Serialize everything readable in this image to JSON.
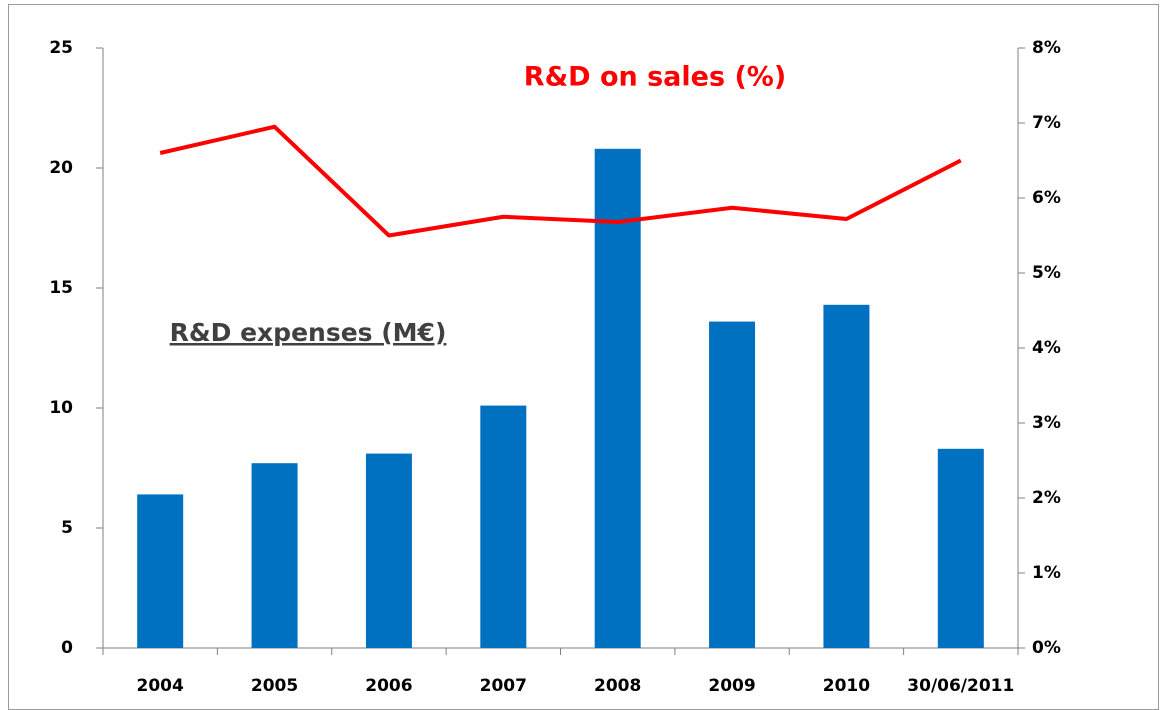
{
  "chart_data": {
    "type": "bar_line",
    "bar_title": "R&D expenses (M€)",
    "line_title": "R&D on sales (%)",
    "categories": [
      "2004",
      "2005",
      "2006",
      "2007",
      "2008",
      "2009",
      "2010",
      "30/06/2011"
    ],
    "series": [
      {
        "name": "R&D expenses (M€)",
        "color": "#0070c0",
        "type": "bar",
        "values": [
          6.4,
          7.7,
          8.1,
          10.1,
          20.8,
          13.6,
          14.3,
          8.3
        ]
      },
      {
        "name": "R&D on sales (%)",
        "color": "#ff0000",
        "type": "line",
        "axis": "y2",
        "values": [
          6.6,
          6.95,
          5.5,
          5.75,
          5.68,
          5.87,
          5.72,
          6.5
        ]
      }
    ],
    "ylim": [
      0,
      25
    ],
    "yticks": [
      0,
      5,
      10,
      15,
      20,
      25
    ],
    "y2lim": [
      0,
      8
    ],
    "y2ticks": [
      {
        "value": 0,
        "label": "0%"
      },
      {
        "value": 1,
        "label": "1%"
      },
      {
        "value": 2,
        "label": "2%"
      },
      {
        "value": 3,
        "label": "3%"
      },
      {
        "value": 4,
        "label": "4%"
      },
      {
        "value": 5,
        "label": "5%"
      },
      {
        "value": 6,
        "label": "6%"
      },
      {
        "value": 7,
        "label": "7%"
      },
      {
        "value": 8,
        "label": "8%"
      }
    ],
    "grid": false
  }
}
